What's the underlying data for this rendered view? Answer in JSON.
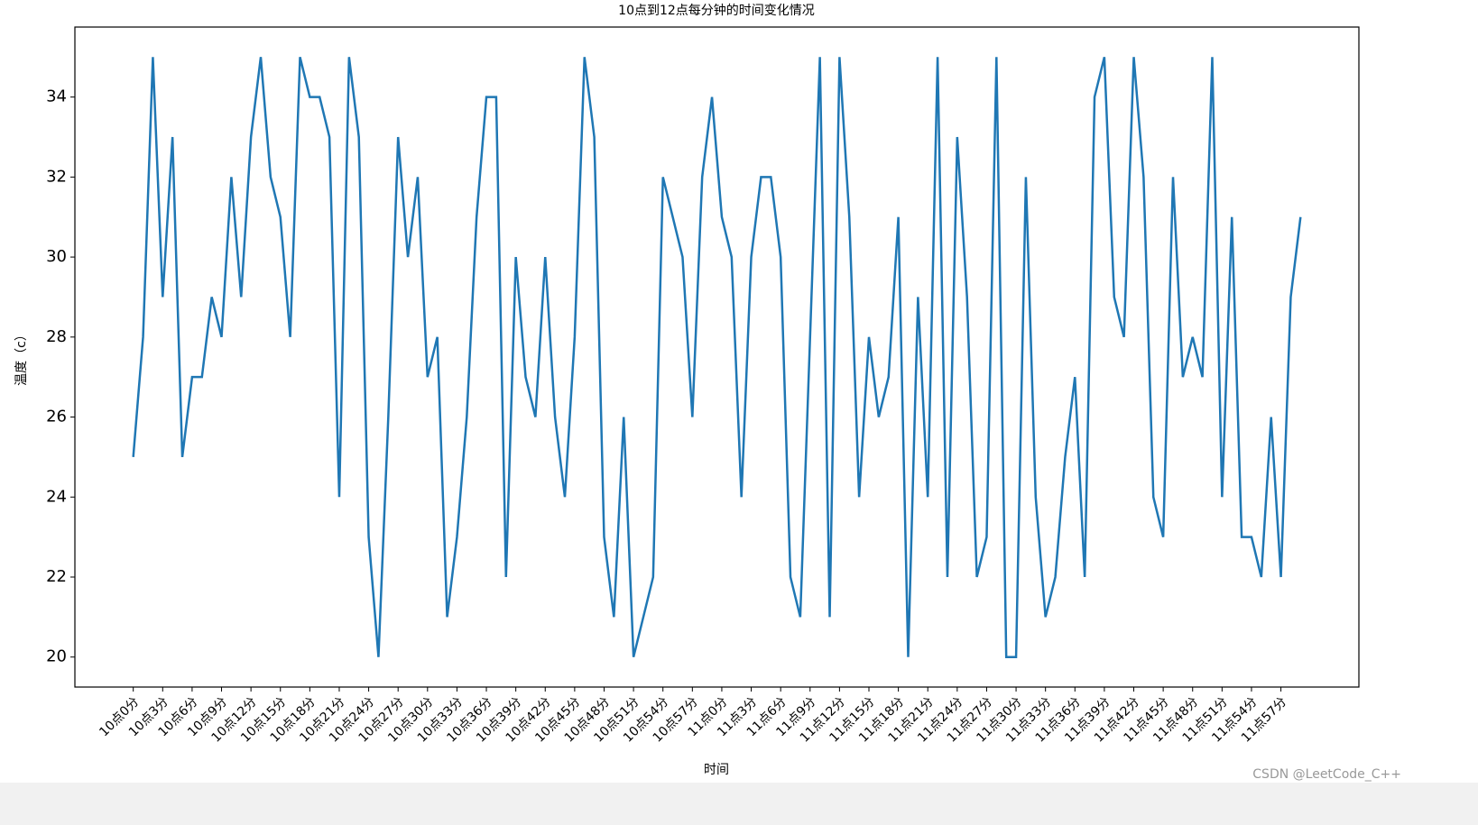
{
  "chart_data": {
    "type": "line",
    "title": "10点到12点每分钟的时间变化情况",
    "x_label": "时间",
    "y_label": "温度（c）",
    "categories": [
      "10点0分",
      null,
      null,
      "10点3分",
      null,
      null,
      "10点6分",
      null,
      null,
      "10点9分",
      null,
      null,
      "10点12分",
      null,
      null,
      "10点15分",
      null,
      null,
      "10点18分",
      null,
      null,
      "10点21分",
      null,
      null,
      "10点24分",
      null,
      null,
      "10点27分",
      null,
      null,
      "10点30分",
      null,
      null,
      "10点33分",
      null,
      null,
      "10点36分",
      null,
      null,
      "10点39分",
      null,
      null,
      "10点42分",
      null,
      null,
      "10点45分",
      null,
      null,
      "10点48分",
      null,
      null,
      "10点51分",
      null,
      null,
      "10点54分",
      null,
      null,
      "10点57分",
      null,
      null,
      "11点0分",
      null,
      null,
      "11点3分",
      null,
      null,
      "11点6分",
      null,
      null,
      "11点9分",
      null,
      null,
      "11点12分",
      null,
      null,
      "11点15分",
      null,
      null,
      "11点18分",
      null,
      null,
      "11点21分",
      null,
      null,
      "11点24分",
      null,
      null,
      "11点27分",
      null,
      null,
      "11点30分",
      null,
      null,
      "11点33分",
      null,
      null,
      "11点36分",
      null,
      null,
      "11点39分",
      null,
      null,
      "11点42分",
      null,
      null,
      "11点45分",
      null,
      null,
      "11点48分",
      null,
      null,
      "11点51分",
      null,
      null,
      "11点54分",
      null,
      null,
      "11点57分",
      null,
      null
    ],
    "values": [
      25,
      28,
      35,
      29,
      33,
      25,
      27,
      27,
      29,
      28,
      32,
      29,
      33,
      35,
      32,
      31,
      28,
      35,
      34,
      34,
      33,
      24,
      35,
      33,
      23,
      20,
      26,
      33,
      30,
      32,
      27,
      28,
      21,
      23,
      26,
      31,
      34,
      34,
      22,
      30,
      27,
      26,
      30,
      26,
      24,
      28,
      35,
      33,
      23,
      21,
      26,
      20,
      21,
      22,
      32,
      31,
      30,
      26,
      32,
      34,
      31,
      30,
      24,
      30,
      32,
      32,
      30,
      22,
      21,
      28,
      35,
      21,
      35,
      31,
      24,
      28,
      26,
      27,
      31,
      20,
      29,
      24,
      35,
      22,
      33,
      29,
      22,
      23,
      35,
      20,
      20,
      32,
      24,
      21,
      22,
      25,
      27,
      22,
      34,
      35,
      29,
      28,
      35,
      32,
      24,
      23,
      32,
      27,
      28,
      27,
      35,
      24,
      31,
      23,
      23,
      22,
      26,
      22,
      29,
      31
    ],
    "color": "#1f77b4",
    "ylim": [
      19.25,
      35.75
    ],
    "yticks": [
      20,
      22,
      24,
      26,
      28,
      30,
      32,
      34
    ],
    "grid": false
  },
  "watermark": "CSDN @LeetCode_C++"
}
